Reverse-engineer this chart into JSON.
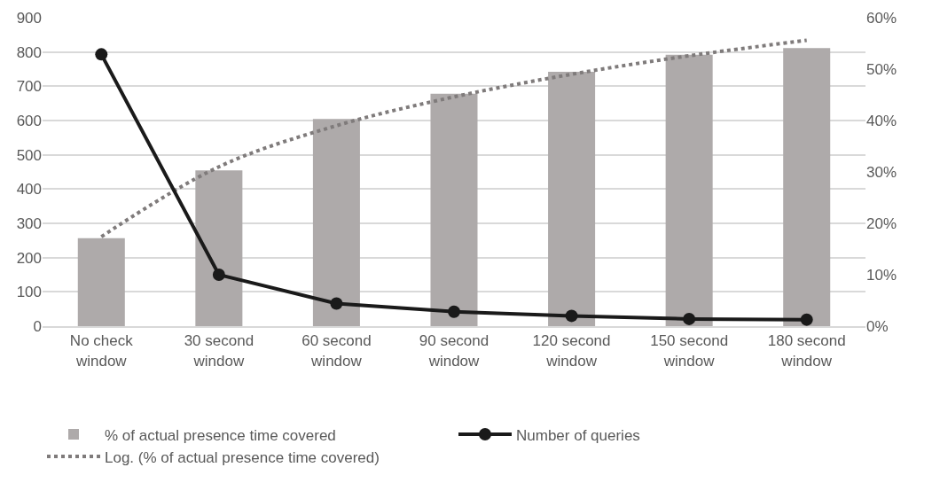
{
  "chart_data": {
    "type": "bar",
    "categories": [
      "No check window",
      "30 second window",
      "60 second window",
      "90 second window",
      "120 second window",
      "150 second window",
      "180 second window"
    ],
    "series": [
      {
        "name": "% of actual presence time covered",
        "axis": "y2",
        "color": "#aeaaaa",
        "values": [
          17.1,
          30.3,
          40.3,
          45.2,
          49.5,
          52.8,
          54.1
        ]
      },
      {
        "name": "Number of queries",
        "type": "line",
        "color": "#1a1a1a",
        "marker": "circle",
        "line_style": "solid",
        "values": [
          793,
          150,
          66,
          42,
          30,
          21,
          19
        ]
      },
      {
        "name": "Log. (% of actual presence time covered)",
        "type": "line",
        "axis": "y2",
        "color": "#7f7b7b",
        "marker": "none",
        "line_style": "dotted",
        "values": [
          17.4,
          31.0,
          39.0,
          44.6,
          49.0,
          52.6,
          55.6
        ]
      }
    ],
    "ylim": [
      0,
      900
    ],
    "yticks": [
      0,
      100,
      200,
      300,
      400,
      500,
      600,
      700,
      800,
      900
    ],
    "y2lim": [
      0,
      60
    ],
    "y2ticks": [
      {
        "value": 0,
        "label": "0%"
      },
      {
        "value": 10,
        "label": "10%"
      },
      {
        "value": 20,
        "label": "20%"
      },
      {
        "value": 30,
        "label": "30%"
      },
      {
        "value": 40,
        "label": "40%"
      },
      {
        "value": 50,
        "label": "50%"
      },
      {
        "value": 60,
        "label": "60%"
      }
    ],
    "grid": "y",
    "legend": "bottom"
  }
}
